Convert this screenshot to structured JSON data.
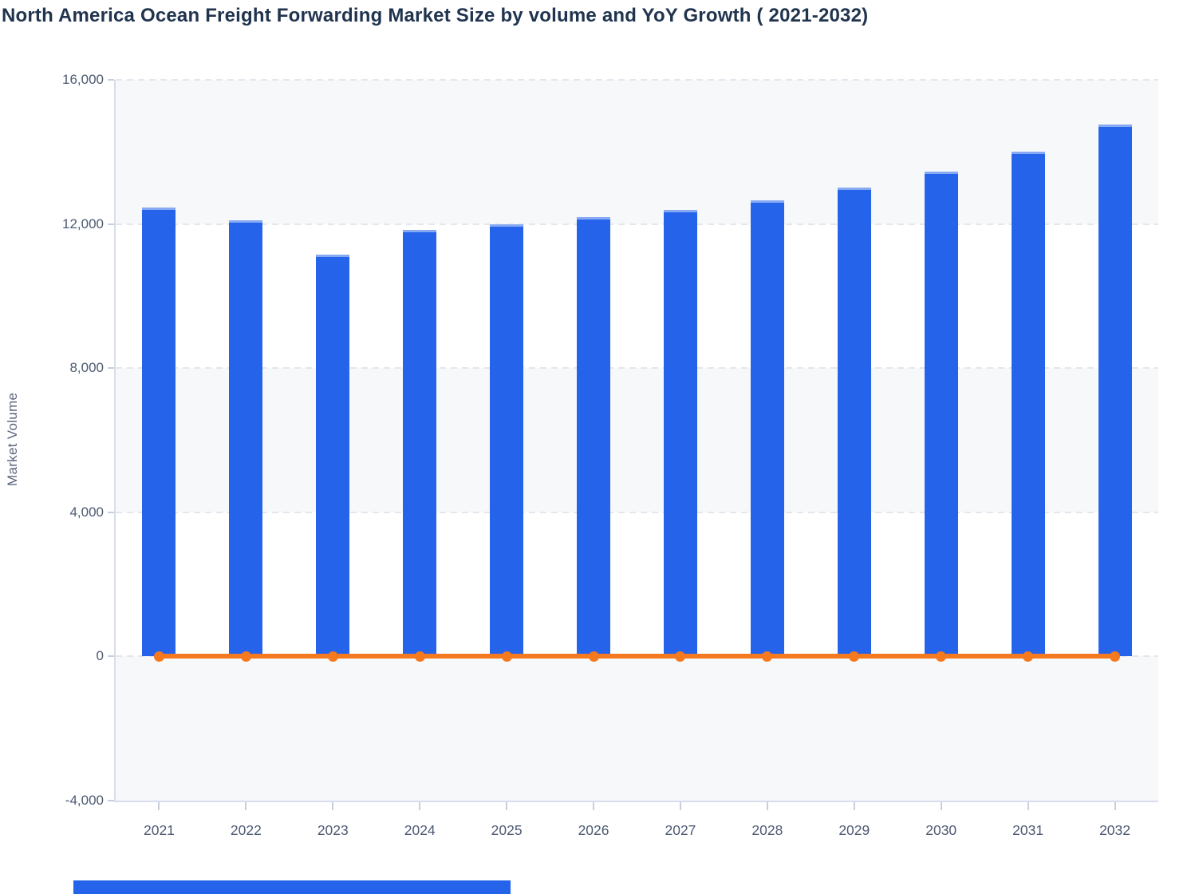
{
  "header": {
    "title": "North America Ocean Freight Forwarding Market Size by volume and YoY Growth ( 2021-2032)"
  },
  "chart_data": {
    "type": "bar",
    "title": "North America Ocean Freight Forwarding Market Size by volume and YoY Growth ( 2021-2032)",
    "categories": [
      "2021",
      "2022",
      "2023",
      "2024",
      "2025",
      "2026",
      "2027",
      "2028",
      "2029",
      "2030",
      "2031",
      "2032"
    ],
    "series": [
      {
        "name": "Market Volume",
        "type": "bar",
        "color": "#2563eb",
        "values": [
          12450,
          12100,
          11150,
          11830,
          12000,
          12200,
          12400,
          12650,
          13000,
          13450,
          14000,
          14750
        ]
      },
      {
        "name": "YoY Growth",
        "type": "line",
        "color": "#f5791f",
        "marker": "circle",
        "values": [
          0,
          0,
          0,
          0,
          0,
          0,
          0,
          0,
          0,
          0,
          0,
          0
        ]
      }
    ],
    "xlabel": "",
    "ylabel": "Market Volume",
    "ylim": [
      -4000,
      16000
    ],
    "ytick_step": 4000,
    "ytick_labels": [
      "16,000",
      "12,000",
      "8,000",
      "4,000",
      "0",
      "-4,000"
    ],
    "grid": "horizontal-dashed",
    "legend": "none",
    "colors": {
      "bar_blue": "#2563eb",
      "line_orange": "#f5791f",
      "band_gray": "#f7f8fa",
      "band_white": "#ffffff",
      "gridline": "#e3e6ec",
      "axis_line": "#d9ddeb",
      "tick": "#c7cee0",
      "axis_text": "#4d5a72",
      "title_text": "#20344f"
    }
  },
  "cropped_element": {
    "description": "partially visible blue element cut off at bottom edge of viewport",
    "color": "#2563eb"
  }
}
